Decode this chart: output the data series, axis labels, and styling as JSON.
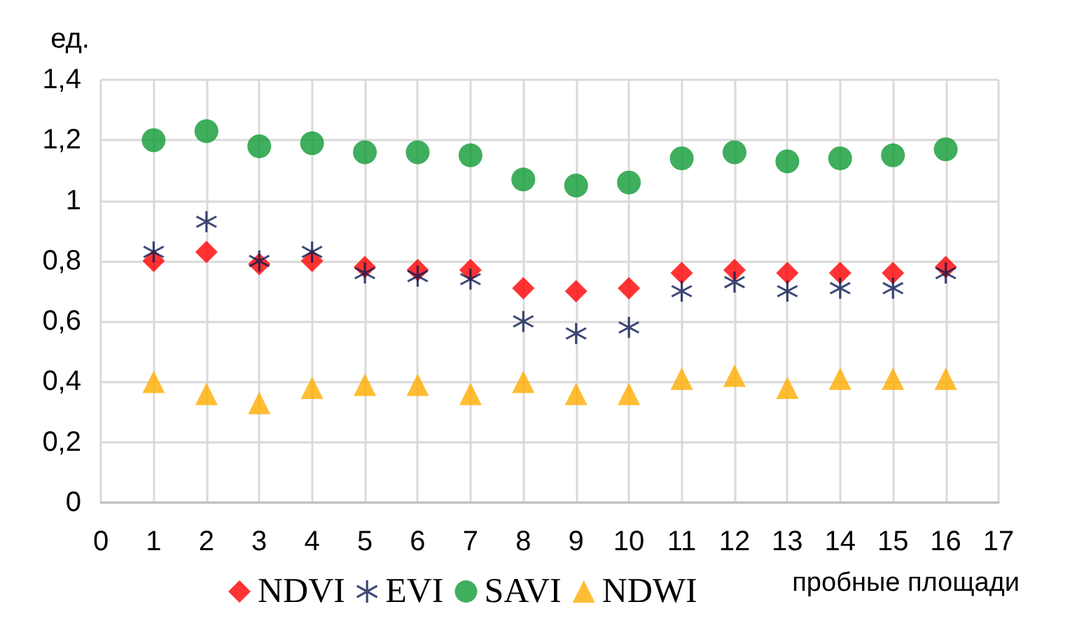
{
  "chart_data": {
    "type": "scatter",
    "ylabel": "ед.",
    "xlabel": "пробные площади",
    "x": [
      1,
      2,
      3,
      4,
      5,
      6,
      7,
      8,
      9,
      10,
      11,
      12,
      13,
      14,
      15,
      16
    ],
    "series": [
      {
        "name": "NDVI",
        "color": "#ff0000",
        "marker": "diamond",
        "values": [
          0.8,
          0.83,
          0.79,
          0.8,
          0.78,
          0.77,
          0.77,
          0.71,
          0.7,
          0.71,
          0.76,
          0.77,
          0.76,
          0.76,
          0.76,
          0.78
        ]
      },
      {
        "name": "EVI",
        "color": "#0d1a52",
        "marker": "cross",
        "values": [
          0.83,
          0.93,
          0.8,
          0.83,
          0.76,
          0.75,
          0.74,
          0.6,
          0.56,
          0.58,
          0.7,
          0.73,
          0.7,
          0.71,
          0.71,
          0.76
        ]
      },
      {
        "name": "SAVI",
        "color": "#0f9a35",
        "marker": "circle",
        "values": [
          1.2,
          1.23,
          1.18,
          1.19,
          1.16,
          1.16,
          1.15,
          1.07,
          1.05,
          1.06,
          1.14,
          1.16,
          1.13,
          1.14,
          1.15,
          1.17
        ]
      },
      {
        "name": "NDWI",
        "color": "#ffad00",
        "marker": "triangle",
        "values": [
          0.4,
          0.36,
          0.33,
          0.38,
          0.39,
          0.39,
          0.36,
          0.4,
          0.36,
          0.36,
          0.41,
          0.42,
          0.38,
          0.41,
          0.41,
          0.41
        ]
      }
    ],
    "xlim": [
      0,
      17
    ],
    "xticks": [
      0,
      1,
      2,
      3,
      4,
      5,
      6,
      7,
      8,
      9,
      10,
      11,
      12,
      13,
      14,
      15,
      16,
      17
    ],
    "ylim": [
      0,
      1.4
    ],
    "yticks": [
      0,
      {
        "value": 0.2,
        "label": "0,2"
      },
      {
        "value": 0.4,
        "label": "0,4"
      },
      {
        "value": 0.6,
        "label": "0,6"
      },
      {
        "value": 0.8,
        "label": "0,8"
      },
      1,
      {
        "value": 1.2,
        "label": "1,2"
      },
      {
        "value": 1.4,
        "label": "1,4"
      }
    ],
    "grid": true,
    "legend": "bottom left"
  }
}
